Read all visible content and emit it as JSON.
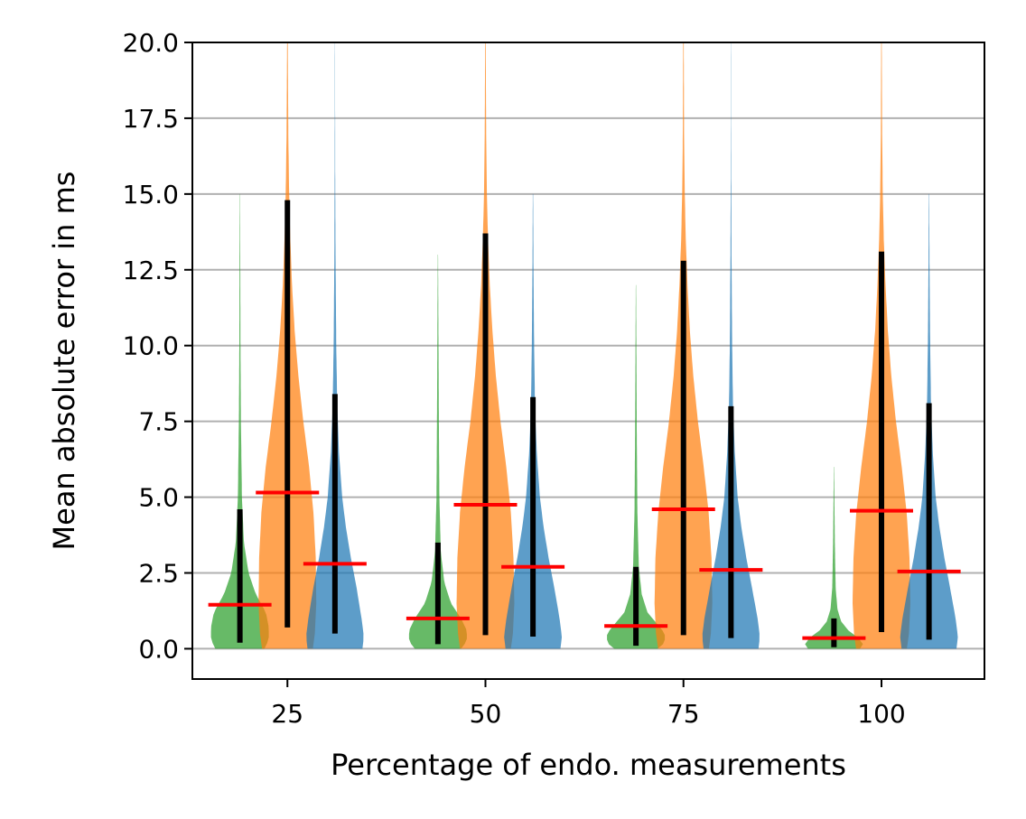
{
  "chart_data": {
    "type": "violin",
    "title": "",
    "xlabel": "Percentage of endo. measurements",
    "ylabel": "Mean absolute error in ms",
    "xlim": [
      13,
      113
    ],
    "ylim": [
      -1.0,
      20.0
    ],
    "x_ticks": [
      {
        "value": 25,
        "label": "25"
      },
      {
        "value": 50,
        "label": "50"
      },
      {
        "value": 75,
        "label": "75"
      },
      {
        "value": 100,
        "label": "100"
      }
    ],
    "y_ticks": [
      {
        "value": 0,
        "label": "0.0"
      },
      {
        "value": 2.5,
        "label": "2.5"
      },
      {
        "value": 5,
        "label": "5.0"
      },
      {
        "value": 7.5,
        "label": "7.5"
      },
      {
        "value": 10,
        "label": "10.0"
      },
      {
        "value": 12.5,
        "label": "12.5"
      },
      {
        "value": 15,
        "label": "15.0"
      },
      {
        "value": 17.5,
        "label": "17.5"
      },
      {
        "value": 20,
        "label": "20.0"
      }
    ],
    "grid": "horizontal",
    "mean_color": "#ff0000",
    "bar_color": "#000000",
    "series": [
      {
        "color": "#2ca02c",
        "x_offset": -6,
        "violins": [
          {
            "x": 25,
            "mean": 1.45,
            "lower": 0.2,
            "upper": 4.6,
            "tail_max": 15.0,
            "width": 1.0,
            "profile": [
              [
                0.0,
                0.85
              ],
              [
                0.3,
                1.0
              ],
              [
                0.7,
                1.0
              ],
              [
                1.2,
                0.9
              ],
              [
                1.8,
                0.55
              ],
              [
                2.5,
                0.3
              ],
              [
                3.5,
                0.14
              ],
              [
                5.0,
                0.07
              ],
              [
                7.5,
                0.035
              ],
              [
                10,
                0.02
              ],
              [
                13,
                0.012
              ],
              [
                15,
                0.005
              ]
            ]
          },
          {
            "x": 50,
            "mean": 1.0,
            "lower": 0.15,
            "upper": 3.5,
            "tail_max": 13.0,
            "width": 1.0,
            "profile": [
              [
                0.0,
                0.8
              ],
              [
                0.25,
                1.0
              ],
              [
                0.6,
                1.0
              ],
              [
                1.0,
                0.8
              ],
              [
                1.5,
                0.45
              ],
              [
                2.2,
                0.22
              ],
              [
                3.2,
                0.1
              ],
              [
                5.0,
                0.05
              ],
              [
                8,
                0.03
              ],
              [
                11,
                0.015
              ],
              [
                13,
                0.005
              ]
            ]
          },
          {
            "x": 75,
            "mean": 0.75,
            "lower": 0.1,
            "upper": 2.7,
            "tail_max": 12.0,
            "width": 1.0,
            "profile": [
              [
                0.0,
                0.75
              ],
              [
                0.2,
                1.0
              ],
              [
                0.5,
                1.0
              ],
              [
                0.8,
                0.75
              ],
              [
                1.2,
                0.4
              ],
              [
                1.8,
                0.2
              ],
              [
                2.7,
                0.1
              ],
              [
                4.5,
                0.05
              ],
              [
                7,
                0.03
              ],
              [
                10,
                0.015
              ],
              [
                12,
                0.005
              ]
            ]
          },
          {
            "x": 100,
            "mean": 0.35,
            "lower": 0.05,
            "upper": 1.0,
            "tail_max": 6.0,
            "width": 1.0,
            "profile": [
              [
                0.0,
                0.9
              ],
              [
                0.15,
                1.0
              ],
              [
                0.35,
                0.85
              ],
              [
                0.6,
                0.5
              ],
              [
                0.9,
                0.25
              ],
              [
                1.3,
                0.12
              ],
              [
                2.0,
                0.06
              ],
              [
                3.5,
                0.03
              ],
              [
                5,
                0.015
              ],
              [
                6,
                0.005
              ]
            ]
          }
        ]
      },
      {
        "color": "#ff7f0e",
        "x_offset": 0,
        "violins": [
          {
            "x": 25,
            "mean": 5.15,
            "lower": 0.7,
            "upper": 14.8,
            "tail_max": 20.0,
            "width": 1.0,
            "profile": [
              [
                0.0,
                0.88
              ],
              [
                0.5,
                0.95
              ],
              [
                1.5,
                1.0
              ],
              [
                3.0,
                0.98
              ],
              [
                4.5,
                0.9
              ],
              [
                6.0,
                0.75
              ],
              [
                7.5,
                0.55
              ],
              [
                9.0,
                0.38
              ],
              [
                10.5,
                0.25
              ],
              [
                12.0,
                0.16
              ],
              [
                13.5,
                0.1
              ],
              [
                15.0,
                0.06
              ],
              [
                17.0,
                0.03
              ],
              [
                20.0,
                0.012
              ]
            ]
          },
          {
            "x": 50,
            "mean": 4.75,
            "lower": 0.45,
            "upper": 13.7,
            "tail_max": 20.0,
            "width": 1.0,
            "profile": [
              [
                0.0,
                0.88
              ],
              [
                0.5,
                0.95
              ],
              [
                1.5,
                1.0
              ],
              [
                3.0,
                0.97
              ],
              [
                4.5,
                0.88
              ],
              [
                6.0,
                0.72
              ],
              [
                7.5,
                0.52
              ],
              [
                9.0,
                0.36
              ],
              [
                10.5,
                0.24
              ],
              [
                12.0,
                0.15
              ],
              [
                13.5,
                0.09
              ],
              [
                15.0,
                0.05
              ],
              [
                17.0,
                0.025
              ],
              [
                20.0,
                0.01
              ]
            ]
          },
          {
            "x": 75,
            "mean": 4.6,
            "lower": 0.45,
            "upper": 12.8,
            "tail_max": 20.0,
            "width": 1.0,
            "profile": [
              [
                0.0,
                0.88
              ],
              [
                0.5,
                0.95
              ],
              [
                1.5,
                1.0
              ],
              [
                3.0,
                0.97
              ],
              [
                4.5,
                0.87
              ],
              [
                6.0,
                0.7
              ],
              [
                7.5,
                0.5
              ],
              [
                9.0,
                0.34
              ],
              [
                10.5,
                0.22
              ],
              [
                12.0,
                0.14
              ],
              [
                13.5,
                0.08
              ],
              [
                15.0,
                0.045
              ],
              [
                17.0,
                0.022
              ],
              [
                20.0,
                0.01
              ]
            ]
          },
          {
            "x": 100,
            "mean": 4.55,
            "lower": 0.55,
            "upper": 13.1,
            "tail_max": 20.0,
            "width": 1.0,
            "profile": [
              [
                0.0,
                0.88
              ],
              [
                0.5,
                0.95
              ],
              [
                1.5,
                1.0
              ],
              [
                3.0,
                0.97
              ],
              [
                4.5,
                0.87
              ],
              [
                6.0,
                0.7
              ],
              [
                7.5,
                0.5
              ],
              [
                9.0,
                0.34
              ],
              [
                10.5,
                0.22
              ],
              [
                12.0,
                0.14
              ],
              [
                13.5,
                0.08
              ],
              [
                15.0,
                0.045
              ],
              [
                17.0,
                0.022
              ],
              [
                20.0,
                0.01
              ]
            ]
          }
        ]
      },
      {
        "color": "#1f77b4",
        "x_offset": 6,
        "violins": [
          {
            "x": 25,
            "mean": 2.8,
            "lower": 0.5,
            "upper": 8.4,
            "tail_max": 20.0,
            "width": 1.0,
            "profile": [
              [
                0.0,
                0.95
              ],
              [
                0.4,
                1.0
              ],
              [
                1.0,
                0.92
              ],
              [
                2.0,
                0.75
              ],
              [
                3.0,
                0.55
              ],
              [
                4.0,
                0.38
              ],
              [
                5.0,
                0.25
              ],
              [
                6.5,
                0.14
              ],
              [
                8.0,
                0.08
              ],
              [
                10.0,
                0.045
              ],
              [
                13.0,
                0.02
              ],
              [
                16.0,
                0.008
              ],
              [
                20.0,
                0.003
              ]
            ]
          },
          {
            "x": 50,
            "mean": 2.7,
            "lower": 0.4,
            "upper": 8.3,
            "tail_max": 15.0,
            "width": 1.0,
            "profile": [
              [
                0.0,
                0.95
              ],
              [
                0.4,
                1.0
              ],
              [
                1.0,
                0.92
              ],
              [
                2.0,
                0.74
              ],
              [
                3.0,
                0.54
              ],
              [
                4.0,
                0.37
              ],
              [
                5.0,
                0.24
              ],
              [
                6.5,
                0.13
              ],
              [
                8.0,
                0.07
              ],
              [
                10.0,
                0.04
              ],
              [
                12.5,
                0.018
              ],
              [
                15.0,
                0.006
              ]
            ]
          },
          {
            "x": 75,
            "mean": 2.6,
            "lower": 0.35,
            "upper": 8.0,
            "tail_max": 20.0,
            "width": 1.0,
            "profile": [
              [
                0.0,
                0.95
              ],
              [
                0.4,
                1.0
              ],
              [
                1.0,
                0.92
              ],
              [
                2.0,
                0.73
              ],
              [
                3.0,
                0.53
              ],
              [
                4.0,
                0.36
              ],
              [
                5.0,
                0.23
              ],
              [
                6.5,
                0.13
              ],
              [
                8.0,
                0.07
              ],
              [
                10.0,
                0.04
              ],
              [
                13.0,
                0.018
              ],
              [
                16.0,
                0.007
              ],
              [
                20.0,
                0.003
              ]
            ]
          },
          {
            "x": 100,
            "mean": 2.55,
            "lower": 0.3,
            "upper": 8.1,
            "tail_max": 15.0,
            "width": 1.0,
            "profile": [
              [
                0.0,
                0.95
              ],
              [
                0.4,
                1.0
              ],
              [
                1.0,
                0.92
              ],
              [
                2.0,
                0.73
              ],
              [
                3.0,
                0.53
              ],
              [
                4.0,
                0.36
              ],
              [
                5.0,
                0.23
              ],
              [
                6.5,
                0.13
              ],
              [
                8.0,
                0.07
              ],
              [
                10.0,
                0.04
              ],
              [
                12.5,
                0.018
              ],
              [
                15.0,
                0.006
              ]
            ]
          }
        ]
      }
    ]
  }
}
